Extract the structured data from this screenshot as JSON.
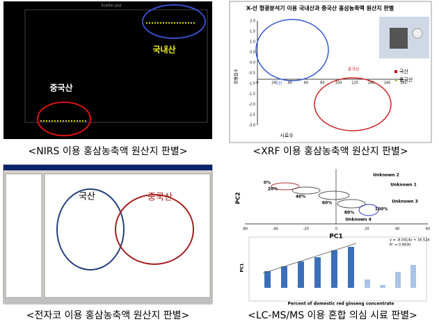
{
  "panels": [
    {
      "caption": "<NIRS 이용 홍삼농축액 원산지 판별>",
      "title": "Scatter plot",
      "label_a": "국내산",
      "label_b": "중국산"
    },
    {
      "caption": "<XRF 이용 홍삼농축액 원산지 판별>",
      "title": "X-선 형광분석기 이용 국내산과 중국산 홍삼농축액 원산지 판별",
      "label_a": "국산",
      "label_b": "중국산",
      "legend": [
        "국산",
        "중국산"
      ],
      "xlabel": "시료수",
      "ylabel": "판별점수",
      "xticks": [
        0,
        20,
        40,
        60,
        80,
        100,
        120,
        140,
        160,
        180
      ],
      "yticks": [
        "2.0",
        "1.5",
        "1.0",
        "0.5",
        "0.0",
        "-0.5",
        "-1.0",
        "-1.5",
        "-2.0",
        "-2.5",
        "-3.0"
      ]
    },
    {
      "caption": "<전자코 이용 홍삼농축액 원산지 판별>",
      "label_a": "국산",
      "label_b": "중국산"
    },
    {
      "caption": "<LC-MS/MS 이용 혼합 의심 시료 판별>",
      "pc1": "PC1",
      "pc2": "PC2",
      "unknowns": [
        "Unknown 1",
        "Unknown 2",
        "Unknown 3",
        "Unknown 4"
      ],
      "percents": [
        "0%",
        "20%",
        "40%",
        "60%",
        "80%",
        "100%"
      ],
      "xticks": [
        -60,
        -40,
        -20,
        0,
        20,
        40,
        60
      ],
      "equation": "y = -8.0414x + 16.524",
      "r2": "R² = 0.9930",
      "xlabel": "Percent of domestic red ginseng concentrate",
      "ylabel": "PC1"
    }
  ]
}
